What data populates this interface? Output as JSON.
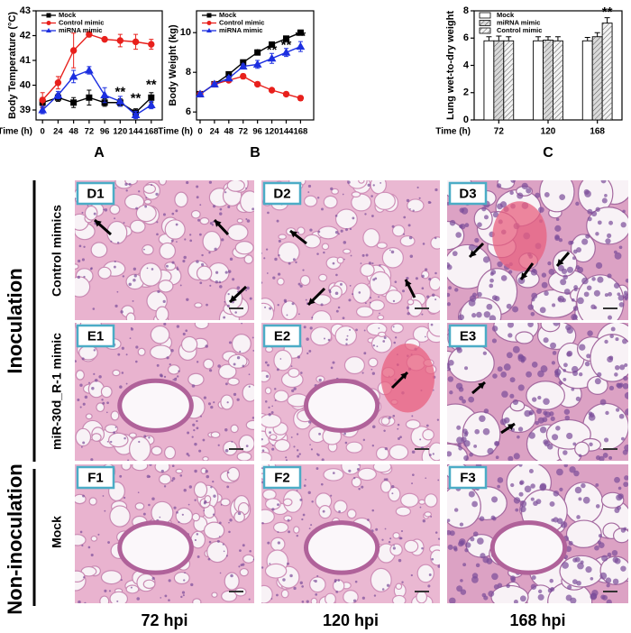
{
  "chart_data": [
    {
      "type": "line",
      "panel": "A",
      "ylabel": "Body Temperature (°C)",
      "xlabel": "Time (h)",
      "legend": "upper left",
      "x": [
        0,
        24,
        48,
        72,
        96,
        120,
        144,
        168
      ],
      "xlim": [
        -10,
        185
      ],
      "xticks": [
        0,
        24,
        48,
        72,
        96,
        120,
        144,
        168
      ],
      "ylim": [
        38.6,
        43
      ],
      "yticks": [
        39,
        40,
        41,
        42,
        43
      ],
      "series": [
        {
          "name": "Mock",
          "color": "#000000",
          "marker": "square",
          "values": [
            39.3,
            39.5,
            39.3,
            39.5,
            39.3,
            39.3,
            38.9,
            39.5
          ],
          "errors": [
            0.2,
            0.15,
            0.2,
            0.3,
            0.15,
            0.15,
            0.15,
            0.2
          ]
        },
        {
          "name": "Control mimic",
          "color": "#e8201c",
          "marker": "circle",
          "values": [
            39.4,
            40.1,
            41.4,
            42.05,
            41.85,
            41.8,
            41.75,
            41.65
          ],
          "errors": [
            0.3,
            0.25,
            0.7,
            0.1,
            0.05,
            0.25,
            0.3,
            0.2
          ]
        },
        {
          "name": "miRNA mimic",
          "color": "#1c2fe0",
          "marker": "triangle",
          "values": [
            39.0,
            39.6,
            40.35,
            40.6,
            39.6,
            39.35,
            38.8,
            39.2
          ],
          "errors": [
            0.15,
            0.15,
            0.25,
            0.15,
            0.3,
            0.2,
            0.15,
            0.15
          ]
        }
      ],
      "annotations": [
        {
          "text": "**",
          "x": 120,
          "y": 39.7
        },
        {
          "text": "**",
          "x": 144,
          "y": 39.45
        },
        {
          "text": "**",
          "x": 168,
          "y": 40.0
        }
      ]
    },
    {
      "type": "line",
      "panel": "B",
      "ylabel": "Body Weight (kg)",
      "xlabel": "Time (h)",
      "legend": "upper left",
      "x": [
        0,
        24,
        48,
        72,
        96,
        120,
        144,
        168
      ],
      "xlim": [
        -6,
        190
      ],
      "xticks": [
        0,
        24,
        48,
        72,
        96,
        120,
        144,
        168
      ],
      "ylim": [
        5.6,
        11.1
      ],
      "yticks": [
        6,
        8,
        10
      ],
      "series": [
        {
          "name": "Mock",
          "color": "#000000",
          "marker": "square",
          "values": [
            6.9,
            7.4,
            7.9,
            8.5,
            9.0,
            9.4,
            9.7,
            10.0
          ],
          "errors": [
            0.08,
            0.08,
            0.08,
            0.1,
            0.08,
            0.1,
            0.1,
            0.1
          ]
        },
        {
          "name": "Control mimic",
          "color": "#e8201c",
          "marker": "circle",
          "values": [
            6.9,
            7.4,
            7.6,
            7.8,
            7.4,
            7.1,
            6.9,
            6.7
          ],
          "errors": [
            0.08,
            0.08,
            0.1,
            0.12,
            0.1,
            0.08,
            0.08,
            0.12
          ]
        },
        {
          "name": "miRNA mimic",
          "color": "#1c2fe0",
          "marker": "triangle",
          "values": [
            6.9,
            7.4,
            7.7,
            8.3,
            8.4,
            8.7,
            9.0,
            9.3
          ],
          "errors": [
            0.08,
            0.08,
            0.1,
            0.12,
            0.2,
            0.25,
            0.2,
            0.25
          ]
        }
      ],
      "annotations": [
        {
          "text": "*",
          "x": 96,
          "y": 8.9
        },
        {
          "text": "**",
          "x": 120,
          "y": 9.1
        },
        {
          "text": "**",
          "x": 144,
          "y": 9.35
        },
        {
          "text": "**",
          "x": 168,
          "y": 9.8
        }
      ]
    },
    {
      "type": "bar",
      "panel": "C",
      "ylabel": "Lung wet-to-dry weight",
      "xlabel": "Time (h)",
      "legend": "upper left",
      "categories": [
        "72",
        "120",
        "168"
      ],
      "ylim": [
        0,
        8
      ],
      "yticks": [
        0,
        2,
        4,
        6,
        8
      ],
      "series": [
        {
          "name": "Mock",
          "color": "#ffffff",
          "values": [
            5.8,
            5.8,
            5.8
          ],
          "errors": [
            0.3,
            0.3,
            0.25
          ]
        },
        {
          "name": "miRNA mimic",
          "color": "#d9d9d9",
          "values": [
            5.8,
            5.85,
            6.1
          ],
          "errors": [
            0.35,
            0.25,
            0.3
          ]
        },
        {
          "name": "Control mimic",
          "color": "#f2f2f2",
          "values": [
            5.8,
            5.8,
            7.1
          ],
          "errors": [
            0.3,
            0.3,
            0.4
          ]
        }
      ],
      "annotations": [
        {
          "text": "**",
          "category": 2,
          "series": 2,
          "y": 7.85
        }
      ]
    }
  ],
  "histology": {
    "row_groups": [
      "Inoculation",
      "Non-inoculation"
    ],
    "rows": [
      "Control mimics",
      "miR-30d_R-1 mimic",
      "Mock"
    ],
    "columns": [
      "72 hpi",
      "120 hpi",
      "168 hpi"
    ],
    "panels": [
      [
        "D1",
        "D2",
        "D3"
      ],
      [
        "E1",
        "E2",
        "E3"
      ],
      [
        "F1",
        "F2",
        "F3"
      ]
    ]
  }
}
